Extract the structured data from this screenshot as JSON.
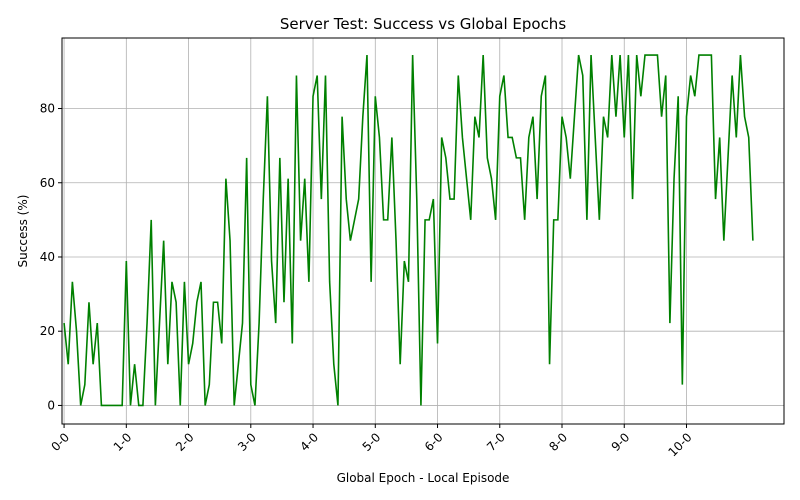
{
  "chart_data": {
    "type": "line",
    "title": "Server Test: Success vs Global Epochs",
    "xlabel": "Global Epoch - Local Episode",
    "ylabel": "Success (%)",
    "x_tick_labels": [
      "0-0",
      "1-0",
      "2-0",
      "3-0",
      "4-0",
      "5-0",
      "6-0",
      "7-0",
      "8-0",
      "9-0",
      "10-0"
    ],
    "episodes_per_epoch": 15,
    "xlim": [
      -0.5,
      173.5
    ],
    "ylim": [
      -5,
      99
    ],
    "y_ticks": [
      0,
      20,
      40,
      60,
      80
    ],
    "grid": true,
    "series": [
      {
        "color": "#008000",
        "values": [
          22.2,
          11.1,
          33.3,
          20.0,
          0.0,
          5.6,
          27.8,
          11.1,
          22.2,
          0.0,
          0.0,
          0.0,
          0.0,
          0.0,
          0.0,
          38.9,
          0.0,
          11.1,
          0.0,
          0.0,
          22.2,
          50.0,
          0.0,
          22.2,
          44.4,
          11.1,
          33.3,
          27.8,
          0.0,
          33.3,
          11.1,
          16.7,
          27.8,
          33.3,
          0.0,
          5.6,
          27.8,
          27.8,
          16.7,
          61.1,
          44.4,
          0.0,
          11.1,
          22.2,
          66.7,
          5.6,
          0.0,
          22.2,
          55.6,
          83.3,
          38.9,
          22.2,
          66.7,
          27.8,
          61.1,
          16.7,
          88.9,
          44.4,
          61.1,
          33.3,
          83.3,
          88.9,
          55.6,
          88.9,
          33.3,
          11.1,
          0.0,
          77.8,
          55.6,
          44.4,
          50.0,
          55.6,
          77.8,
          94.4,
          33.3,
          83.3,
          72.2,
          50.0,
          50.0,
          72.2,
          44.4,
          11.1,
          38.9,
          33.3,
          94.4,
          55.6,
          0.0,
          50.0,
          50.0,
          55.6,
          16.7,
          72.2,
          66.7,
          55.6,
          55.6,
          88.9,
          72.2,
          61.1,
          50.0,
          77.8,
          72.2,
          94.4,
          66.7,
          61.1,
          50.0,
          83.3,
          88.9,
          72.2,
          72.2,
          66.7,
          66.7,
          50.0,
          72.2,
          77.8,
          55.6,
          83.3,
          88.9,
          11.1,
          50.0,
          50.0,
          77.8,
          72.2,
          61.1,
          77.8,
          94.4,
          88.9,
          50.0,
          94.4,
          72.2,
          50.0,
          77.8,
          72.2,
          94.4,
          77.8,
          94.4,
          72.2,
          94.4,
          55.6,
          94.4,
          83.3,
          94.4,
          94.4,
          94.4,
          94.4,
          77.8,
          88.9,
          22.2,
          61.1,
          83.3,
          5.6,
          77.8,
          88.9,
          83.3,
          94.4,
          94.4,
          94.4,
          94.4,
          55.6,
          72.2,
          44.4,
          66.7,
          88.9,
          72.2,
          94.4,
          77.8,
          72.2,
          44.4
        ]
      }
    ]
  }
}
